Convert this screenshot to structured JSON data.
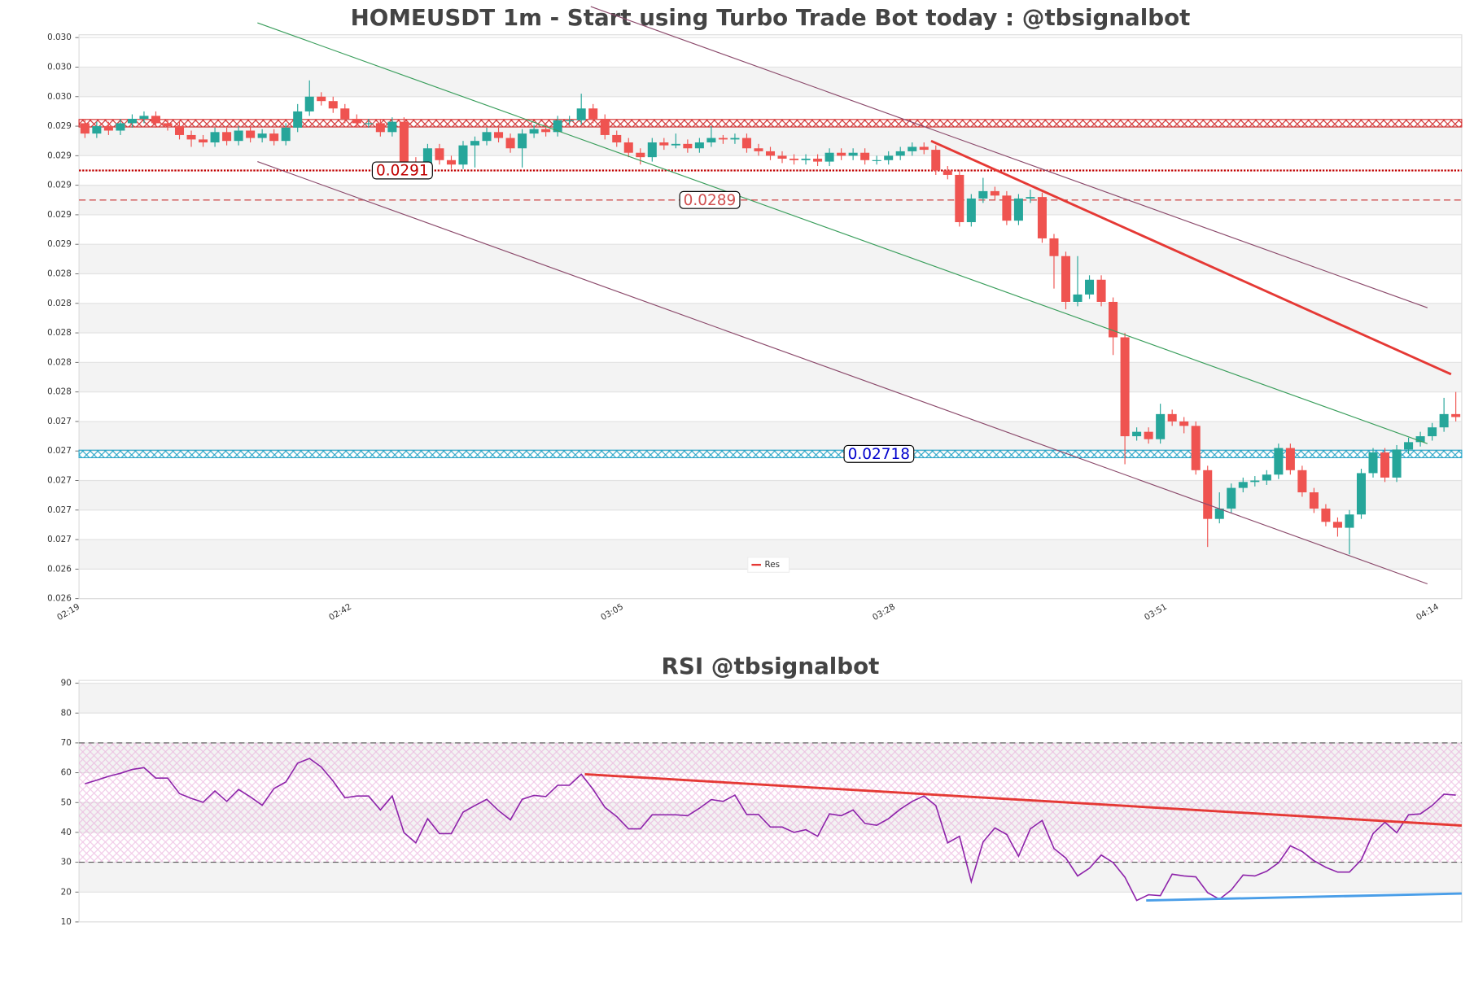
{
  "chart_data": [
    {
      "type": "candlestick",
      "title": "HOMEUSDT 1m - Start using Turbo Trade Bot today : @tbsignalbot",
      "categories": [
        "02:19",
        null,
        null,
        null,
        null,
        null,
        null,
        null,
        null,
        null,
        null,
        null,
        null,
        null,
        null,
        null,
        null,
        null,
        null,
        null,
        null,
        null,
        null,
        "02:42",
        null,
        null,
        null,
        null,
        null,
        null,
        null,
        null,
        null,
        null,
        null,
        null,
        null,
        null,
        null,
        null,
        null,
        null,
        null,
        null,
        null,
        null,
        "03:05",
        null,
        null,
        null,
        null,
        null,
        null,
        null,
        null,
        null,
        null,
        null,
        null,
        null,
        null,
        null,
        null,
        null,
        null,
        null,
        null,
        null,
        null,
        "03:28",
        null,
        null,
        null,
        null,
        null,
        null,
        null,
        null,
        null,
        null,
        null,
        null,
        null,
        null,
        null,
        null,
        null,
        null,
        null,
        null,
        null,
        null,
        "03:51",
        null,
        null,
        null,
        null,
        null,
        null,
        null,
        null,
        null,
        null,
        null,
        null,
        null,
        null,
        null,
        null,
        null,
        null,
        null,
        null,
        null,
        null,
        "04:14",
        null
      ],
      "open": [
        0.02942,
        0.02935,
        0.0294,
        0.02937,
        0.02942,
        0.02945,
        0.02947,
        0.02942,
        0.0294,
        0.02934,
        0.02931,
        0.02929,
        0.02936,
        0.0293,
        0.02937,
        0.02932,
        0.02935,
        0.0293,
        0.02939,
        0.0295,
        0.0296,
        0.02957,
        0.02952,
        0.02945,
        0.02942,
        0.02942,
        0.02936,
        0.02943,
        0.02916,
        0.02914,
        0.02925,
        0.02917,
        0.02914,
        0.02927,
        0.0293,
        0.02936,
        0.02932,
        0.02925,
        0.02935,
        0.02938,
        0.02936,
        0.02944,
        0.02944,
        0.02952,
        0.02945,
        0.02934,
        0.02929,
        0.02922,
        0.02919,
        0.02929,
        0.02927,
        0.02928,
        0.02925,
        0.02929,
        0.02932,
        0.02931,
        0.02932,
        0.02925,
        0.02923,
        0.0292,
        0.02918,
        0.02917,
        0.02918,
        0.02916,
        0.02922,
        0.0292,
        0.02922,
        0.02917,
        0.02917,
        0.0292,
        0.02923,
        0.02926,
        0.02924,
        0.0291,
        0.02907,
        0.02875,
        0.02891,
        0.02896,
        0.02893,
        0.02876,
        0.02891,
        0.02892,
        0.02864,
        0.02852,
        0.02821,
        0.02826,
        0.02836,
        0.02821,
        0.02797,
        0.0273,
        0.02733,
        0.02728,
        0.02745,
        0.0274,
        0.02737,
        0.02707,
        0.02674,
        0.02681,
        0.02695,
        0.02699,
        0.027,
        0.02704,
        0.02722,
        0.02707,
        0.02692,
        0.02681,
        0.02672,
        0.02668,
        0.02677,
        0.02705,
        0.02719,
        0.02702,
        0.02721,
        0.02726,
        0.0273,
        0.02736,
        0.02745
      ],
      "high": [
        0.02945,
        0.02943,
        0.02943,
        0.02945,
        0.02948,
        0.0295,
        0.0295,
        0.02945,
        0.02943,
        0.02937,
        0.02934,
        0.02939,
        0.02939,
        0.0294,
        0.0294,
        0.02938,
        0.02938,
        0.02942,
        0.02955,
        0.02971,
        0.02963,
        0.0296,
        0.02955,
        0.02948,
        0.02945,
        0.02945,
        0.02946,
        0.02946,
        0.02919,
        0.02928,
        0.02928,
        0.0292,
        0.0293,
        0.02933,
        0.02939,
        0.02939,
        0.02935,
        0.02938,
        0.02941,
        0.02941,
        0.02947,
        0.02947,
        0.02962,
        0.02955,
        0.02948,
        0.02937,
        0.02932,
        0.02925,
        0.02932,
        0.02932,
        0.02935,
        0.02931,
        0.02932,
        0.0294,
        0.02934,
        0.02935,
        0.02935,
        0.02928,
        0.02926,
        0.02923,
        0.02921,
        0.02921,
        0.02921,
        0.02925,
        0.02925,
        0.02925,
        0.02925,
        0.0292,
        0.02923,
        0.02926,
        0.02929,
        0.02929,
        0.02927,
        0.02913,
        0.0291,
        0.02894,
        0.02905,
        0.02899,
        0.02896,
        0.02894,
        0.02897,
        0.02895,
        0.02867,
        0.02855,
        0.02852,
        0.02839,
        0.02839,
        0.02824,
        0.028,
        0.02736,
        0.02736,
        0.02752,
        0.02748,
        0.02743,
        0.0274,
        0.0271,
        0.02692,
        0.02698,
        0.02702,
        0.02703,
        0.02707,
        0.02725,
        0.02725,
        0.0271,
        0.02695,
        0.02684,
        0.02675,
        0.0268,
        0.02708,
        0.02722,
        0.02722,
        0.02724,
        0.02729,
        0.02733,
        0.02739,
        0.02756,
        0.0276
      ],
      "low": [
        0.02932,
        0.02932,
        0.02934,
        0.02934,
        0.02939,
        0.02942,
        0.02939,
        0.02937,
        0.02931,
        0.02926,
        0.02926,
        0.02926,
        0.02927,
        0.02927,
        0.02929,
        0.02929,
        0.02927,
        0.02927,
        0.02936,
        0.02947,
        0.02954,
        0.02949,
        0.02942,
        0.02939,
        0.02939,
        0.02933,
        0.02933,
        0.02913,
        0.02911,
        0.02911,
        0.02914,
        0.02911,
        0.02911,
        0.02912,
        0.02927,
        0.02929,
        0.02922,
        0.02912,
        0.02932,
        0.02933,
        0.02933,
        0.02941,
        0.02941,
        0.02942,
        0.02931,
        0.02926,
        0.02919,
        0.02914,
        0.02916,
        0.02924,
        0.02925,
        0.02922,
        0.02922,
        0.02926,
        0.02928,
        0.02928,
        0.02922,
        0.0292,
        0.02917,
        0.02915,
        0.02914,
        0.02914,
        0.02913,
        0.02913,
        0.02917,
        0.02917,
        0.02914,
        0.02914,
        0.02914,
        0.02917,
        0.0292,
        0.02921,
        0.02907,
        0.02904,
        0.02872,
        0.02872,
        0.02888,
        0.0289,
        0.02873,
        0.02873,
        0.02888,
        0.02861,
        0.0283,
        0.02816,
        0.02818,
        0.02823,
        0.02818,
        0.02785,
        0.02711,
        0.02727,
        0.02725,
        0.02725,
        0.02737,
        0.02732,
        0.02704,
        0.02655,
        0.02671,
        0.02678,
        0.02692,
        0.02696,
        0.02697,
        0.02701,
        0.02704,
        0.02689,
        0.02678,
        0.02669,
        0.02662,
        0.0265,
        0.02674,
        0.02702,
        0.02699,
        0.02699,
        0.02718,
        0.02723,
        0.02727,
        0.02733,
        0.0274
      ],
      "close": [
        0.02935,
        0.0294,
        0.02937,
        0.02942,
        0.02945,
        0.02947,
        0.02942,
        0.0294,
        0.02934,
        0.02931,
        0.02929,
        0.02936,
        0.0293,
        0.02937,
        0.02932,
        0.02935,
        0.0293,
        0.02939,
        0.0295,
        0.0296,
        0.02957,
        0.02952,
        0.02945,
        0.02942,
        0.02942,
        0.02936,
        0.02943,
        0.02916,
        0.02914,
        0.02925,
        0.02917,
        0.02914,
        0.02927,
        0.0293,
        0.02936,
        0.02932,
        0.02925,
        0.02935,
        0.02938,
        0.02936,
        0.02944,
        0.02944,
        0.02952,
        0.02945,
        0.02934,
        0.02929,
        0.02922,
        0.02919,
        0.02929,
        0.02927,
        0.02928,
        0.02925,
        0.02929,
        0.02932,
        0.02931,
        0.02932,
        0.02925,
        0.02923,
        0.0292,
        0.02918,
        0.02917,
        0.02918,
        0.02916,
        0.02922,
        0.0292,
        0.02922,
        0.02917,
        0.02917,
        0.0292,
        0.02923,
        0.02926,
        0.02924,
        0.0291,
        0.02907,
        0.02875,
        0.02891,
        0.02896,
        0.02893,
        0.02876,
        0.02891,
        0.02892,
        0.02864,
        0.02852,
        0.02821,
        0.02826,
        0.02836,
        0.02821,
        0.02797,
        0.0273,
        0.02733,
        0.02728,
        0.02745,
        0.0274,
        0.02737,
        0.02707,
        0.02674,
        0.02681,
        0.02695,
        0.02699,
        0.027,
        0.02704,
        0.02722,
        0.02707,
        0.02692,
        0.02681,
        0.02672,
        0.02668,
        0.02677,
        0.02705,
        0.02719,
        0.02702,
        0.02721,
        0.02726,
        0.0273,
        0.02736,
        0.02745,
        0.02743
      ],
      "up_color": "#26a69a",
      "down_color": "#ef5350",
      "ylim": [
        0.0262,
        0.03
      ],
      "yticks": [
        {
          "value": 0.0262,
          "label": "0.026"
        },
        {
          "value": 0.0264,
          "label": "0.026"
        },
        {
          "value": 0.0266,
          "label": "0.027"
        },
        {
          "value": 0.0268,
          "label": "0.027"
        },
        {
          "value": 0.027,
          "label": "0.027"
        },
        {
          "value": 0.0272,
          "label": "0.027"
        },
        {
          "value": 0.0274,
          "label": "0.027"
        },
        {
          "value": 0.0276,
          "label": "0.028"
        },
        {
          "value": 0.0278,
          "label": "0.028"
        },
        {
          "value": 0.028,
          "label": "0.028"
        },
        {
          "value": 0.0282,
          "label": "0.028"
        },
        {
          "value": 0.0284,
          "label": "0.028"
        },
        {
          "value": 0.0286,
          "label": "0.029"
        },
        {
          "value": 0.0288,
          "label": "0.029"
        },
        {
          "value": 0.029,
          "label": "0.029"
        },
        {
          "value": 0.0292,
          "label": "0.029"
        },
        {
          "value": 0.0294,
          "label": "0.029"
        },
        {
          "value": 0.0296,
          "label": "0.030"
        },
        {
          "value": 0.0298,
          "label": "0.030"
        },
        {
          "value": 0.03,
          "label": "0.030"
        }
      ],
      "bands": true,
      "levels": [
        {
          "value": 0.02942,
          "color": "#d32f2f",
          "style": "band",
          "labeled": false
        },
        {
          "value": 0.0291,
          "color": "#c00000",
          "style": "dotted",
          "labeled": true
        },
        {
          "value": 0.0289,
          "color": "#d05050",
          "style": "dashed",
          "labeled": true
        },
        {
          "value": 0.02718,
          "color": "#2aa6c8",
          "style": "band",
          "labeled": true,
          "label_color": "#0000cc"
        }
      ],
      "trend_lines": [
        {
          "color": "#3a9e5c",
          "x": [
            14.6,
            113.6
          ],
          "y": [
            0.0301,
            0.02725
          ]
        },
        {
          "color": "#8b4a6b",
          "x": [
            42.8,
            113.6
          ],
          "y": [
            0.03021,
            0.02817
          ]
        },
        {
          "color": "#8b4a6b",
          "x": [
            14.6,
            113.6
          ],
          "y": [
            0.02916,
            0.0263
          ]
        },
        {
          "name": "Res",
          "color": "#e53935",
          "x": [
            71.6,
            115.6
          ],
          "y": [
            0.0293,
            0.02772
          ]
        }
      ],
      "legend": "lower center"
    },
    {
      "type": "line",
      "title": "RSI @tbsignalbot",
      "color": "#8e24aa",
      "values": [
        56.3,
        57.5,
        58.8,
        59.8,
        61.1,
        61.7,
        58.2,
        58.2,
        53,
        51.4,
        50.1,
        53.9,
        50.4,
        54.4,
        51.9,
        49.1,
        54.7,
        56.9,
        63.2,
        64.8,
        61.9,
        57.2,
        51.6,
        52.2,
        52.2,
        47.5,
        52.2,
        39.9,
        36.5,
        44.6,
        39.6,
        39.6,
        46.8,
        49,
        51.1,
        47.3,
        44.2,
        51.1,
        52.4,
        52,
        55.8,
        55.8,
        59.5,
        54.4,
        48.4,
        45.3,
        41.2,
        41.2,
        45.9,
        45.9,
        45.9,
        45.6,
        48.1,
        51,
        50.4,
        52.5,
        46,
        46,
        41.8,
        41.8,
        40,
        40.9,
        38.7,
        46.2,
        45.6,
        47.5,
        43,
        42.4,
        44.6,
        47.8,
        50.4,
        52.2,
        49,
        36.5,
        38.7,
        23.5,
        36.8,
        41.5,
        39.3,
        32,
        41.2,
        44,
        34.6,
        31.4,
        25.4,
        28,
        32.4,
        29.9,
        25,
        17.2,
        19.1,
        18.8,
        26,
        25.4,
        25.1,
        19.8,
        17.6,
        20.7,
        25.7,
        25.4,
        27,
        29.8,
        35.5,
        33.6,
        30.5,
        28.3,
        26.7,
        26.7,
        30.8,
        39.6,
        43.4,
        39.9,
        45.9,
        46.2,
        49,
        52.8,
        52.5
      ],
      "ylim": [
        10,
        90
      ],
      "yticks": [
        10,
        20,
        30,
        40,
        50,
        60,
        70,
        80,
        90
      ],
      "bands": true,
      "hlines": [
        30,
        70
      ],
      "hline_color": "#555555",
      "shade_between_hlines": true,
      "shade_color": "#e8a6d8",
      "trend_lines": [
        {
          "color": "#e53935",
          "x": [
            42.3,
            116.5
          ],
          "y": [
            59.5,
            42.3
          ]
        },
        {
          "color": "#4a9ee8",
          "x": [
            89.8,
            116.5
          ],
          "y": [
            17.2,
            19.5
          ]
        }
      ]
    }
  ]
}
